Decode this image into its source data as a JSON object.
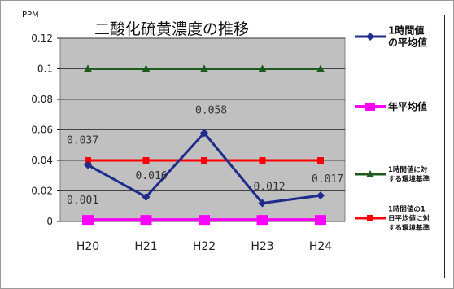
{
  "chart_data": {
    "type": "line",
    "title": "二酸化硫黄濃度の推移",
    "ylabel": "PPM",
    "xlabel": "",
    "categories": [
      "H20",
      "H21",
      "H22",
      "H23",
      "H24"
    ],
    "ylim": [
      0,
      0.12
    ],
    "yticks": [
      "0",
      "0.02",
      "0.04",
      "0.06",
      "0.08",
      "0.1",
      "0.12"
    ],
    "grid": true,
    "legend_position": "right",
    "plot_background": "#c0c0c0",
    "series": [
      {
        "name": "1時間値の平均値",
        "legend_lines": [
          "1時間値",
          "の平均値"
        ],
        "values": [
          0.037,
          0.016,
          0.058,
          0.012,
          0.017
        ],
        "labels": [
          "0.037",
          "0.016",
          "0.058",
          "0.012",
          "0.017"
        ],
        "color": "#1f2c8c",
        "marker": "diamond"
      },
      {
        "name": "年平均値",
        "legend_lines": [
          "年平均値"
        ],
        "values": [
          0.001,
          0.001,
          0.001,
          0.001,
          0.001
        ],
        "labels": [
          "0.001",
          "",
          "",
          "",
          ""
        ],
        "color": "#ff00ff",
        "marker": "square"
      },
      {
        "name": "1時間値に対する環境基準",
        "legend_lines": [
          "1時間値に対",
          "する環境基準"
        ],
        "values": [
          0.1,
          0.1,
          0.1,
          0.1,
          0.1
        ],
        "color": "#1d5a1d",
        "marker": "triangle"
      },
      {
        "name": "1時間値の1日平均値に対する環境基準",
        "legend_lines": [
          "1時間値の1",
          "日平均値に対",
          "する環境基準"
        ],
        "values": [
          0.04,
          0.04,
          0.04,
          0.04,
          0.04
        ],
        "color": "#ff0000",
        "marker": "square"
      }
    ]
  }
}
